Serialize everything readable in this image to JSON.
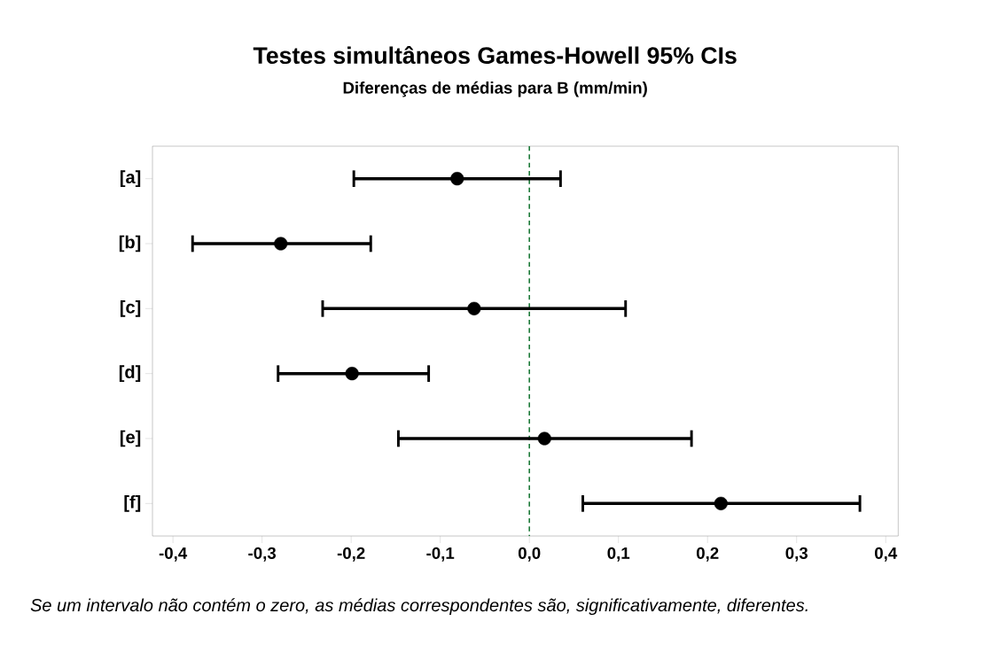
{
  "chart_data": {
    "type": "scatter",
    "title": "Testes simultâneos Games-Howell 95% CIs",
    "subtitle": "Diferenças de médias para B (mm/min)",
    "orientation": "horizontal",
    "categories": [
      "[a]",
      "[b]",
      "[c]",
      "[d]",
      "[e]",
      "[f]"
    ],
    "values": [
      -0.081,
      -0.279,
      -0.062,
      -0.199,
      0.017,
      0.215
    ],
    "errors": [
      [
        -0.197,
        0.035
      ],
      [
        -0.378,
        -0.178
      ],
      [
        -0.232,
        0.108
      ],
      [
        -0.282,
        -0.113
      ],
      [
        -0.147,
        0.182
      ],
      [
        0.06,
        0.371
      ]
    ],
    "color": "#000000",
    "marker": "circle",
    "xlim": [
      -0.423,
      0.414
    ],
    "xticks": [
      {
        "value": -0.4,
        "label": "-0,4"
      },
      {
        "value": -0.3,
        "label": "-0,3"
      },
      {
        "value": -0.2,
        "label": "-0,2"
      },
      {
        "value": -0.1,
        "label": "-0,1"
      },
      {
        "value": 0.0,
        "label": "0,0"
      },
      {
        "value": 0.1,
        "label": "0,1"
      },
      {
        "value": 0.2,
        "label": "0,2"
      },
      {
        "value": 0.3,
        "label": "0,3"
      },
      {
        "value": 0.4,
        "label": "0,4"
      }
    ],
    "ref_lines": [
      {
        "axis": "x",
        "value": 0,
        "color": "#1e7b3a",
        "line_style": "dashed"
      }
    ],
    "annotations": [
      "Se um intervalo não contém o zero, as médias correspondentes são, significativamente, diferentes."
    ]
  }
}
